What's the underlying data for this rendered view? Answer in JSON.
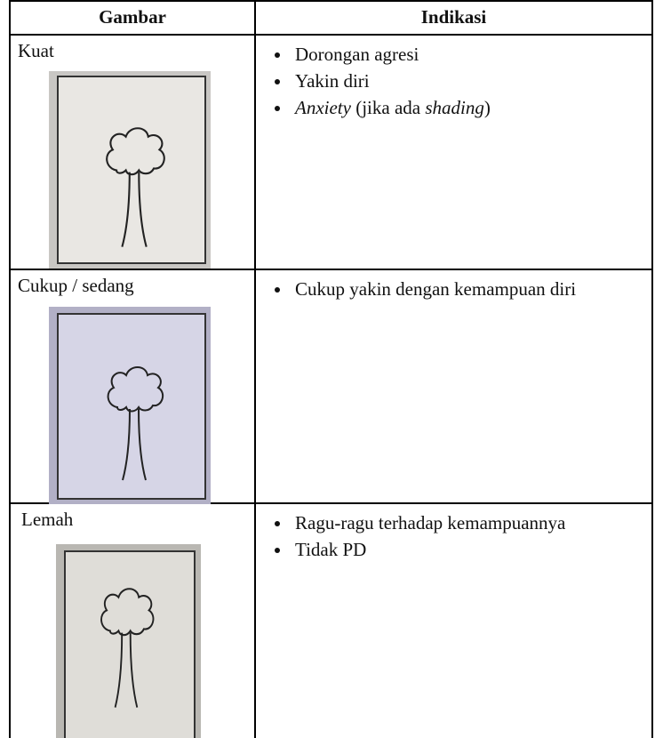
{
  "table": {
    "header": [
      "Gambar",
      "Indikasi"
    ],
    "rows": [
      {
        "label": "Kuat",
        "items": [
          {
            "parts": [
              {
                "text": "Dorongan agresi"
              }
            ]
          },
          {
            "parts": [
              {
                "text": "Yakin diri"
              }
            ]
          },
          {
            "parts": [
              {
                "text": "Anxiety",
                "italic": true
              },
              {
                "text": " (jika ada "
              },
              {
                "text": "shading",
                "italic": true
              },
              {
                "text": ")"
              }
            ]
          }
        ]
      },
      {
        "label": "Cukup / sedang",
        "items": [
          {
            "parts": [
              {
                "text": "Cukup yakin dengan kemampuan diri"
              }
            ],
            "justify": true
          }
        ]
      },
      {
        "label": "Lemah",
        "items": [
          {
            "parts": [
              {
                "text": "Ragu-ragu terhadap kemampuannya"
              }
            ],
            "justify": true
          },
          {
            "parts": [
              {
                "text": "Tidak PD"
              }
            ]
          }
        ]
      }
    ]
  }
}
